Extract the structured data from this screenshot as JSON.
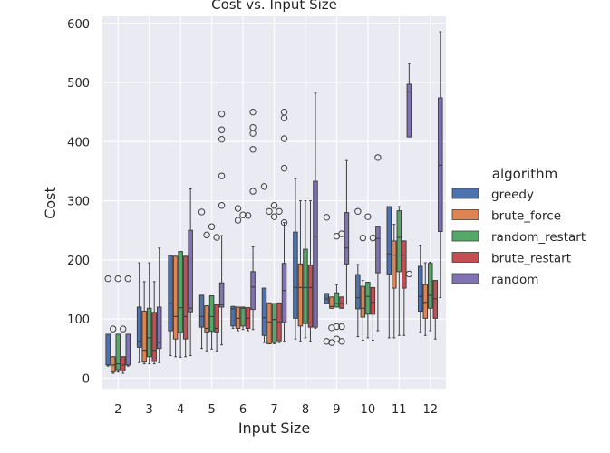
{
  "chart_data": {
    "type": "box",
    "title": "Cost vs. Input Size",
    "xlabel": "Input Size",
    "ylabel": "Cost",
    "categories": [
      "2",
      "3",
      "4",
      "5",
      "6",
      "7",
      "8",
      "9",
      "10",
      "11",
      "12"
    ],
    "ylim": [
      -18,
      612
    ],
    "yticks": [
      0,
      100,
      200,
      300,
      400,
      500,
      600
    ],
    "grid": true,
    "legend": {
      "title": "algorithm",
      "position": "right"
    },
    "series": [
      {
        "name": "greedy",
        "color": "#4c72b0",
        "boxes": [
          {
            "whislo": 20,
            "q1": 22,
            "med": 22,
            "q3": 74,
            "whishi": 74,
            "fliers": [
              168
            ]
          },
          {
            "whislo": 26,
            "q1": 52,
            "med": 62,
            "q3": 120,
            "whishi": 195,
            "fliers": []
          },
          {
            "whislo": 38,
            "q1": 80,
            "med": 126,
            "q3": 207,
            "whishi": 207,
            "fliers": []
          },
          {
            "whislo": 50,
            "q1": 86,
            "med": 104,
            "q3": 140,
            "whishi": 140,
            "fliers": [
              281
            ]
          },
          {
            "whislo": 84,
            "q1": 88,
            "med": 117,
            "q3": 121,
            "whishi": 121,
            "fliers": []
          },
          {
            "whislo": 60,
            "q1": 72,
            "med": 102,
            "q3": 152,
            "whishi": 152,
            "fliers": [
              324
            ]
          },
          {
            "whislo": 66,
            "q1": 101,
            "med": 153,
            "q3": 247,
            "whishi": 337,
            "fliers": []
          },
          {
            "whislo": 126,
            "q1": 126,
            "med": 134,
            "q3": 143,
            "whishi": 143,
            "fliers": [
              272,
              62
            ]
          },
          {
            "whislo": 70,
            "q1": 117,
            "med": 136,
            "q3": 175,
            "whishi": 192,
            "fliers": [
              282
            ]
          },
          {
            "whislo": 68,
            "q1": 176,
            "med": 210,
            "q3": 290,
            "whishi": 290,
            "fliers": []
          },
          {
            "whislo": 78,
            "q1": 113,
            "med": 138,
            "q3": 189,
            "whishi": 225,
            "fliers": []
          }
        ]
      },
      {
        "name": "brute_force",
        "color": "#dd8452",
        "boxes": [
          {
            "whislo": 8,
            "q1": 10,
            "med": 22,
            "q3": 36,
            "whishi": 36,
            "fliers": [
              83
            ]
          },
          {
            "whislo": 24,
            "q1": 27,
            "med": 47,
            "q3": 113,
            "whishi": 163,
            "fliers": []
          },
          {
            "whislo": 36,
            "q1": 66,
            "med": 104,
            "q3": 206,
            "whishi": 206,
            "fliers": []
          },
          {
            "whislo": 46,
            "q1": 78,
            "med": 84,
            "q3": 122,
            "whishi": 122,
            "fliers": [
              242
            ]
          },
          {
            "whislo": 80,
            "q1": 84,
            "med": 101,
            "q3": 120,
            "whishi": 120,
            "fliers": [
              267,
              287
            ]
          },
          {
            "whislo": 58,
            "q1": 58,
            "med": 95,
            "q3": 127,
            "whishi": 127,
            "fliers": [
              282
            ]
          },
          {
            "whislo": 62,
            "q1": 88,
            "med": 153,
            "q3": 193,
            "whishi": 300,
            "fliers": []
          },
          {
            "whislo": 118,
            "q1": 118,
            "med": 121,
            "q3": 137,
            "whishi": 137,
            "fliers": [
              60,
              85
            ]
          },
          {
            "whislo": 64,
            "q1": 103,
            "med": 118,
            "q3": 155,
            "whishi": 165,
            "fliers": [
              237
            ]
          },
          {
            "whislo": 68,
            "q1": 152,
            "med": 208,
            "q3": 232,
            "whishi": 260,
            "fliers": []
          },
          {
            "whislo": 72,
            "q1": 101,
            "med": 128,
            "q3": 158,
            "whishi": 195,
            "fliers": []
          }
        ]
      },
      {
        "name": "random_restart",
        "color": "#55a868",
        "boxes": [
          {
            "whislo": 10,
            "q1": 14,
            "med": 24,
            "q3": 74,
            "whishi": 74,
            "fliers": [
              168
            ]
          },
          {
            "whislo": 24,
            "q1": 36,
            "med": 68,
            "q3": 118,
            "whishi": 195,
            "fliers": []
          },
          {
            "whislo": 35,
            "q1": 77,
            "med": 119,
            "q3": 214,
            "whishi": 214,
            "fliers": []
          },
          {
            "whislo": 49,
            "q1": 79,
            "med": 104,
            "q3": 139,
            "whishi": 139,
            "fliers": [
              256
            ]
          },
          {
            "whislo": 82,
            "q1": 88,
            "med": 118,
            "q3": 120,
            "whishi": 120,
            "fliers": [
              276
            ]
          },
          {
            "whislo": 58,
            "q1": 60,
            "med": 99,
            "q3": 126,
            "whishi": 126,
            "fliers": [
              292,
              273
            ]
          },
          {
            "whislo": 68,
            "q1": 92,
            "med": 153,
            "q3": 218,
            "whishi": 300,
            "fliers": []
          },
          {
            "whislo": 120,
            "q1": 120,
            "med": 126,
            "q3": 144,
            "whishi": 158,
            "fliers": [
              240,
              66,
              87
            ]
          },
          {
            "whislo": 68,
            "q1": 108,
            "med": 138,
            "q3": 162,
            "whishi": 162,
            "fliers": [
              273
            ]
          },
          {
            "whislo": 72,
            "q1": 180,
            "med": 238,
            "q3": 283,
            "whishi": 290,
            "fliers": []
          },
          {
            "whislo": 80,
            "q1": 118,
            "med": 140,
            "q3": 194,
            "whishi": 196,
            "fliers": []
          }
        ]
      },
      {
        "name": "brute_restart",
        "color": "#c44e52",
        "boxes": [
          {
            "whislo": 8,
            "q1": 12,
            "med": 22,
            "q3": 36,
            "whishi": 36,
            "fliers": [
              83
            ]
          },
          {
            "whislo": 24,
            "q1": 28,
            "med": 47,
            "q3": 111,
            "whishi": 163,
            "fliers": []
          },
          {
            "whislo": 36,
            "q1": 66,
            "med": 104,
            "q3": 206,
            "whishi": 206,
            "fliers": []
          },
          {
            "whislo": 46,
            "q1": 78,
            "med": 84,
            "q3": 124,
            "whishi": 124,
            "fliers": [
              238
            ]
          },
          {
            "whislo": 80,
            "q1": 84,
            "med": 101,
            "q3": 119,
            "whishi": 119,
            "fliers": [
              275
            ]
          },
          {
            "whislo": 60,
            "q1": 63,
            "med": 95,
            "q3": 127,
            "whishi": 127,
            "fliers": [
              282
            ]
          },
          {
            "whislo": 62,
            "q1": 86,
            "med": 153,
            "q3": 191,
            "whishi": 300,
            "fliers": []
          },
          {
            "whislo": 118,
            "q1": 118,
            "med": 126,
            "q3": 137,
            "whishi": 137,
            "fliers": [
              244,
              62,
              87
            ]
          },
          {
            "whislo": 64,
            "q1": 108,
            "med": 128,
            "q3": 153,
            "whishi": 153,
            "fliers": [
              237
            ]
          },
          {
            "whislo": 72,
            "q1": 152,
            "med": 208,
            "q3": 232,
            "whishi": 232,
            "fliers": []
          },
          {
            "whislo": 66,
            "q1": 101,
            "med": 134,
            "q3": 165,
            "whishi": 165,
            "fliers": []
          }
        ]
      },
      {
        "name": "random",
        "color": "#8172b3",
        "boxes": [
          {
            "whislo": 20,
            "q1": 22,
            "med": 22,
            "q3": 74,
            "whishi": 74,
            "fliers": [
              168
            ]
          },
          {
            "whislo": 26,
            "q1": 50,
            "med": 60,
            "q3": 120,
            "whishi": 220,
            "fliers": []
          },
          {
            "whislo": 38,
            "q1": 112,
            "med": 118,
            "q3": 250,
            "whishi": 320,
            "fliers": []
          },
          {
            "whislo": 56,
            "q1": 120,
            "med": 124,
            "q3": 161,
            "whishi": 241,
            "fliers": [
              292,
              342,
              404,
              420,
              447
            ]
          },
          {
            "whislo": 82,
            "q1": 116,
            "med": 154,
            "q3": 180,
            "whishi": 222,
            "fliers": [
              316,
              387,
              414,
              424,
              450
            ]
          },
          {
            "whislo": 62,
            "q1": 94,
            "med": 148,
            "q3": 194,
            "whishi": 263,
            "fliers": [
              263,
              355,
              405,
              440,
              450
            ]
          },
          {
            "whislo": 84,
            "q1": 86,
            "med": 240,
            "q3": 333,
            "whishi": 482,
            "fliers": []
          },
          {
            "whislo": 125,
            "q1": 193,
            "med": 220,
            "q3": 280,
            "whishi": 368,
            "fliers": []
          },
          {
            "whislo": 80,
            "q1": 178,
            "med": 236,
            "q3": 256,
            "whishi": 256,
            "fliers": [
              373
            ]
          },
          {
            "whislo": 408,
            "q1": 408,
            "med": 484,
            "q3": 497,
            "whishi": 532,
            "fliers": [
              176
            ]
          },
          {
            "whislo": 136,
            "q1": 248,
            "med": 360,
            "q3": 474,
            "whishi": 586,
            "fliers": []
          }
        ]
      }
    ]
  }
}
